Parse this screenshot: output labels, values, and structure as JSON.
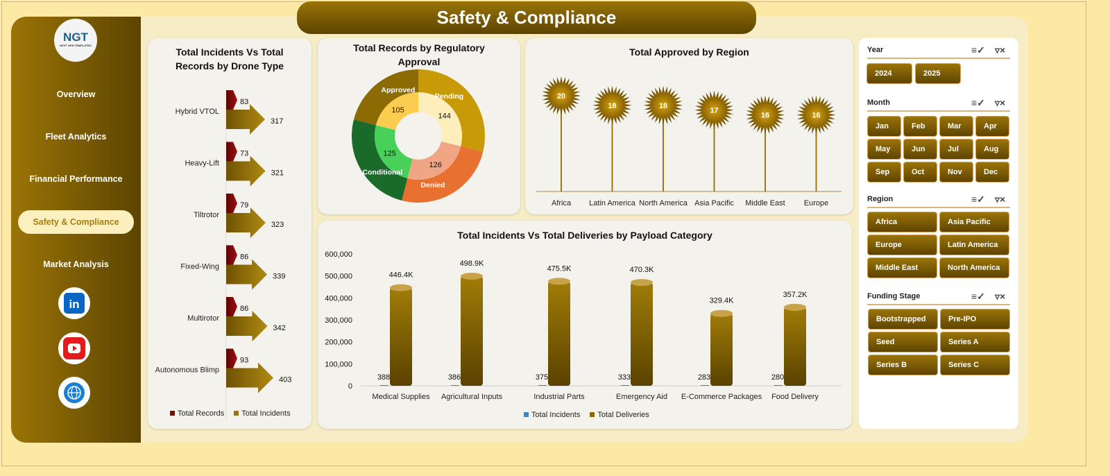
{
  "header": {
    "title": "Safety & Compliance"
  },
  "logo": {
    "text": "NGT",
    "subtitle": "NEXT GEN TEMPLATES"
  },
  "nav": [
    {
      "label": "Overview"
    },
    {
      "label": "Fleet Analytics"
    },
    {
      "label": "Financial Performance"
    },
    {
      "label": "Safety & Compliance",
      "active": true
    },
    {
      "label": "Market Analysis"
    }
  ],
  "social": [
    "linkedin-icon",
    "youtube-icon",
    "globe-icon"
  ],
  "colors": {
    "gold": "#9a7408",
    "dark_gold": "#5c4300",
    "records": "#7a0a0a",
    "background": "#fde9a6"
  },
  "chart_data": [
    {
      "type": "bar",
      "title": "Total Incidents Vs Total Records by Drone Type",
      "categories": [
        "Hybrid VTOL",
        "Heavy-Lift",
        "Tiltrotor",
        "Fixed-Wing",
        "Multirotor",
        "Autonomous Blimp"
      ],
      "series": [
        {
          "name": "Total Records",
          "values": [
            83,
            73,
            79,
            86,
            86,
            93
          ]
        },
        {
          "name": "Total Incidents",
          "values": [
            317,
            321,
            323,
            339,
            342,
            403
          ]
        }
      ],
      "legend": "bottom"
    },
    {
      "type": "pie",
      "title": "Total Records by Regulatory Approval",
      "categories": [
        "Pending",
        "Denied",
        "Conditional",
        "Approved"
      ],
      "values": [
        144,
        126,
        125,
        105
      ]
    },
    {
      "type": "scatter",
      "title": "Total Approved by Region",
      "categories": [
        "Africa",
        "Latin America",
        "North America",
        "Asia Pacific",
        "Middle East",
        "Europe"
      ],
      "values": [
        20,
        18,
        18,
        17,
        16,
        16
      ]
    },
    {
      "type": "bar",
      "title": "Total Incidents Vs Total Deliveries by Payload Category",
      "categories": [
        "Medical Supplies",
        "Agricultural Inputs",
        "Industrial Parts",
        "Emergency Aid",
        "E-Commerce Packages",
        "Food Delivery"
      ],
      "series": [
        {
          "name": "Total Incidents",
          "values": [
            388,
            386,
            375,
            333,
            283,
            280
          ]
        },
        {
          "name": "Total Deliveries",
          "values": [
            446400,
            498900,
            475500,
            470300,
            329400,
            357200
          ],
          "labels": [
            "446.4K",
            "498.9K",
            "475.5K",
            "470.3K",
            "329.4K",
            "357.2K"
          ]
        }
      ],
      "yticks": [
        "0",
        "100,000",
        "200,000",
        "300,000",
        "400,000",
        "500,000",
        "600,000"
      ],
      "ylim": [
        0,
        600000
      ],
      "legend": "bottom"
    }
  ],
  "filters": {
    "year": {
      "label": "Year",
      "items": [
        "2024",
        "2025"
      ]
    },
    "month": {
      "label": "Month",
      "items": [
        "Jan",
        "Feb",
        "Mar",
        "Apr",
        "May",
        "Jun",
        "Jul",
        "Aug",
        "Sep",
        "Oct",
        "Nov",
        "Dec"
      ]
    },
    "region": {
      "label": "Region",
      "items": [
        "Africa",
        "Asia Pacific",
        "Europe",
        "Latin America",
        "Middle East",
        "North America"
      ]
    },
    "funding": {
      "label": "Funding Stage",
      "items": [
        "Bootstrapped",
        "Pre-IPO",
        "Seed",
        "Series A",
        "Series B",
        "Series C"
      ]
    }
  }
}
